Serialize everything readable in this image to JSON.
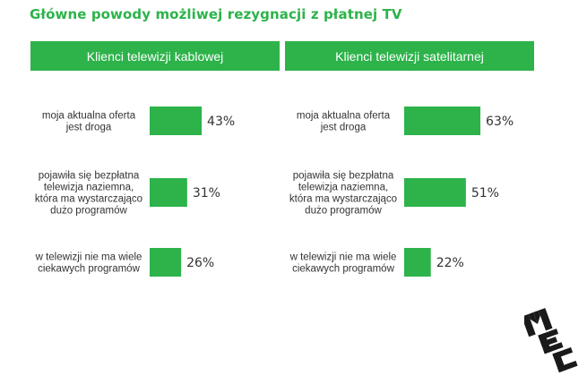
{
  "title": "Główne powody możliwej rezygnacji z płatnej TV",
  "colors": {
    "accent": "#2db34a",
    "text": "#333333",
    "logo": "#1a1a1a"
  },
  "logo_text": "MEC",
  "chart_data": [
    {
      "type": "bar",
      "orientation": "horizontal",
      "title": "Klienci telewizji kablowej",
      "categories": [
        [
          "moja aktualna oferta",
          "jest droga"
        ],
        [
          "pojawiła się bezpłatna",
          "telewizja naziemna,",
          "która ma wystarczająco",
          "dużo programów"
        ],
        [
          "w telewizji nie ma wiele",
          "ciekawych programów"
        ]
      ],
      "values": [
        43,
        31,
        26
      ],
      "value_labels": [
        "43%",
        "31%",
        "26%"
      ],
      "xlim": [
        0,
        100
      ]
    },
    {
      "type": "bar",
      "orientation": "horizontal",
      "title": "Klienci telewizji satelitarnej",
      "categories": [
        [
          "moja aktualna oferta",
          "jest droga"
        ],
        [
          "pojawiła się bezpłatna",
          "telewizja naziemna,",
          "która ma wystarczająco",
          "dużo programów"
        ],
        [
          "w telewizji nie ma wiele",
          "ciekawych programów"
        ]
      ],
      "values": [
        63,
        51,
        22
      ],
      "value_labels": [
        "63%",
        "51%",
        "22%"
      ],
      "xlim": [
        0,
        100
      ]
    }
  ]
}
